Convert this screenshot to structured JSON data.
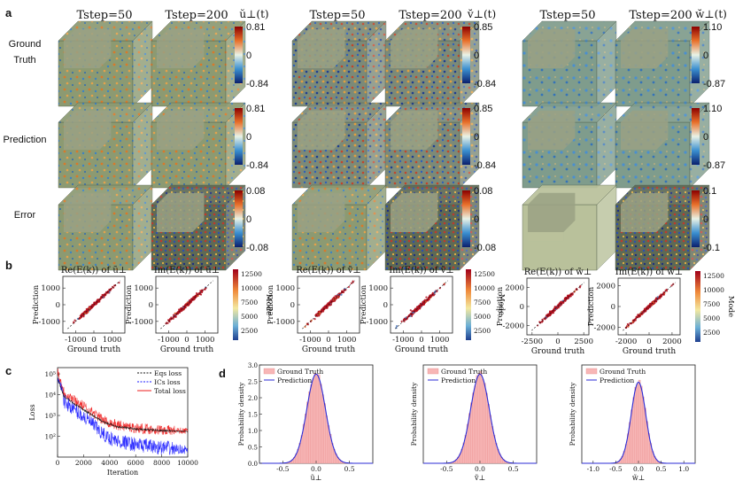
{
  "panel_letters": {
    "a": "a",
    "b": "b",
    "c": "c",
    "d": "d"
  },
  "panel_a": {
    "row_labels": [
      "Ground\nTruth",
      "Prediction",
      "Error"
    ],
    "column_headers": [
      "Tstep=50",
      "Tstep=200",
      "Tstep=50",
      "Tstep=200",
      "Tstep=50",
      "Tstep=200"
    ],
    "groups": [
      {
        "symbol": "ŭ⊥(t)",
        "rows": [
          [
            "0.81",
            "0",
            "-0.84"
          ],
          [
            "0.81",
            "0",
            "-0.84"
          ],
          [
            "0.08",
            "0",
            "-0.08"
          ]
        ]
      },
      {
        "symbol": "v̆⊥(t)",
        "rows": [
          [
            "0.85",
            "0",
            "-0.84"
          ],
          [
            "0.85",
            "0",
            "-0.84"
          ],
          [
            "0.08",
            "0",
            "-0.08"
          ]
        ]
      },
      {
        "symbol": "w̆⊥(t)",
        "rows": [
          [
            "1.10",
            "0",
            "-0.87"
          ],
          [
            "1.10",
            "0",
            "-0.87"
          ],
          [
            "0.1",
            "0",
            "-0.1"
          ]
        ]
      }
    ]
  },
  "colors": {
    "accent_red": "#b00020",
    "loss_blue": "#1a1aff",
    "loss_black": "#111111",
    "hist_fill": "#f7b6b6",
    "pred_line": "#2b2bd6"
  },
  "chart_data": [
    {
      "type": "scatter",
      "id": "b1",
      "title": "Re(E(k)) of ũ⊥",
      "xlabel": "Ground truth",
      "ylabel": "Prediction",
      "xticks": [
        "-1000",
        "0",
        "1000"
      ],
      "yticks": [
        "1000",
        "0",
        "-1000"
      ],
      "xlim": [
        -1700,
        1700
      ],
      "ylim": [
        -1700,
        1700
      ],
      "colorbar": {
        "label": "Mode",
        "ticks": [
          "12500",
          "10000",
          "7500",
          "5000",
          "2500"
        ]
      }
    },
    {
      "type": "scatter",
      "id": "b2",
      "title": "Im(E(k)) of ũ⊥",
      "xlabel": "Ground truth",
      "ylabel": "Prediction",
      "xticks": [
        "-1000",
        "0",
        "1000"
      ],
      "yticks": [
        "1000",
        "0",
        "-1000"
      ],
      "xlim": [
        -1700,
        1700
      ],
      "ylim": [
        -1700,
        1700
      ],
      "colorbar": {
        "label": "Mode",
        "ticks": [
          "12500",
          "10000",
          "7500",
          "5000",
          "2500"
        ]
      }
    },
    {
      "type": "scatter",
      "id": "b3",
      "title": "Re(E(k)) of ṽ⊥",
      "xlabel": "Ground truth",
      "ylabel": "Prediction",
      "xticks": [
        "-1000",
        "0",
        "1000"
      ],
      "yticks": [
        "1000",
        "0",
        "-1000"
      ],
      "xlim": [
        -1700,
        1700
      ],
      "ylim": [
        -1700,
        1700
      ],
      "colorbar": {
        "label": "Mode",
        "ticks": [
          "12500",
          "10000",
          "7500",
          "5000",
          "2500"
        ]
      }
    },
    {
      "type": "scatter",
      "id": "b4",
      "title": "Im(E(k)) of ṽ⊥",
      "xlabel": "Ground truth",
      "ylabel": "Prediction",
      "xticks": [
        "-1000",
        "0",
        "1000"
      ],
      "yticks": [
        "1000",
        "0",
        "-1000"
      ],
      "xlim": [
        -1700,
        1700
      ],
      "ylim": [
        -1700,
        1700
      ],
      "colorbar": {
        "label": "Mode",
        "ticks": [
          "12500",
          "10000",
          "7500",
          "5000",
          "2500"
        ]
      }
    },
    {
      "type": "scatter",
      "id": "b5",
      "title": "Re(E(k)) of w̃⊥",
      "xlabel": "Ground truth",
      "ylabel": "Prediction",
      "xticks": [
        "-2500",
        "0",
        "2500"
      ],
      "yticks": [
        "2000",
        "0",
        "-2000"
      ],
      "xlim": [
        -3000,
        3000
      ],
      "ylim": [
        -3000,
        3000
      ],
      "colorbar": {
        "label": "Mode",
        "ticks": [
          "12500",
          "10000",
          "7500",
          "5000",
          "2500"
        ]
      }
    },
    {
      "type": "scatter",
      "id": "b6",
      "title": "Im(E(k)) of w̃⊥",
      "xlabel": "Ground truth",
      "ylabel": "Prediction",
      "xticks": [
        "-2000",
        "0",
        "2000"
      ],
      "yticks": [
        "2000",
        "0",
        "-2000"
      ],
      "xlim": [
        -2700,
        2700
      ],
      "ylim": [
        -2700,
        2700
      ],
      "colorbar": {
        "label": "Mode",
        "ticks": [
          "12500",
          "10000",
          "7500",
          "5000",
          "2500"
        ]
      }
    },
    {
      "type": "line",
      "id": "c",
      "xlabel": "Iteration",
      "ylabel": "Loss",
      "yscale": "log",
      "xticks": [
        "0",
        "2000",
        "4000",
        "6000",
        "8000",
        "10000"
      ],
      "yticks": [
        "10⁵",
        "10⁴",
        "10³",
        "10²"
      ],
      "xlim": [
        0,
        10000
      ],
      "ylim": [
        10,
        200000
      ],
      "series": [
        {
          "name": "Eqs loss",
          "x": [
            0,
            500,
            1500,
            2500,
            3500,
            4500,
            6000,
            8000,
            10000
          ],
          "values": [
            60000,
            8000,
            3000,
            1200,
            500,
            300,
            220,
            190,
            170
          ]
        },
        {
          "name": "ICs loss",
          "x": [
            0,
            500,
            1500,
            2500,
            3500,
            4500,
            6000,
            8000,
            10000
          ],
          "values": [
            80000,
            5000,
            1500,
            500,
            120,
            60,
            40,
            28,
            22
          ]
        },
        {
          "name": "Total loss",
          "x": [
            0,
            500,
            1500,
            2500,
            3500,
            4500,
            6000,
            8000,
            10000
          ],
          "values": [
            140000,
            13000,
            4500,
            1700,
            600,
            350,
            250,
            200,
            180
          ]
        }
      ]
    },
    {
      "type": "area",
      "id": "d1",
      "xlabel": "ũ⊥",
      "ylabel": "Probability density",
      "xticks": [
        "-0.5",
        "0.0",
        "0.5"
      ],
      "yticks": [
        "3.0",
        "2.5",
        "2.0",
        "1.5",
        "1.0",
        "0.5",
        "0.0"
      ],
      "xlim": [
        -0.85,
        0.85
      ],
      "ylim": [
        0,
        3.0
      ],
      "mean": 0.0,
      "std": 0.14,
      "peak": 2.75,
      "series": [
        {
          "name": "Ground Truth"
        },
        {
          "name": "Prediction"
        }
      ]
    },
    {
      "type": "area",
      "id": "d2",
      "xlabel": "ṽ⊥",
      "ylabel": "Probability density",
      "xticks": [
        "-0.5",
        "0.0",
        "0.5"
      ],
      "yticks": [],
      "xlim": [
        -0.85,
        0.85
      ],
      "ylim": [
        0,
        3.0
      ],
      "mean": 0.0,
      "std": 0.14,
      "peak": 2.75,
      "series": [
        {
          "name": "Ground Truth"
        },
        {
          "name": "Prediction"
        }
      ]
    },
    {
      "type": "area",
      "id": "d3",
      "xlabel": "w̃⊥",
      "ylabel": "Probability density",
      "xticks": [
        "-1.0",
        "-0.5",
        "0.0",
        "0.5",
        "1.0"
      ],
      "yticks": [],
      "xlim": [
        -1.25,
        1.25
      ],
      "ylim": [
        0,
        3.0
      ],
      "mean": 0.0,
      "std": 0.16,
      "peak": 2.5,
      "series": [
        {
          "name": "Ground Truth"
        },
        {
          "name": "Prediction"
        }
      ]
    }
  ]
}
